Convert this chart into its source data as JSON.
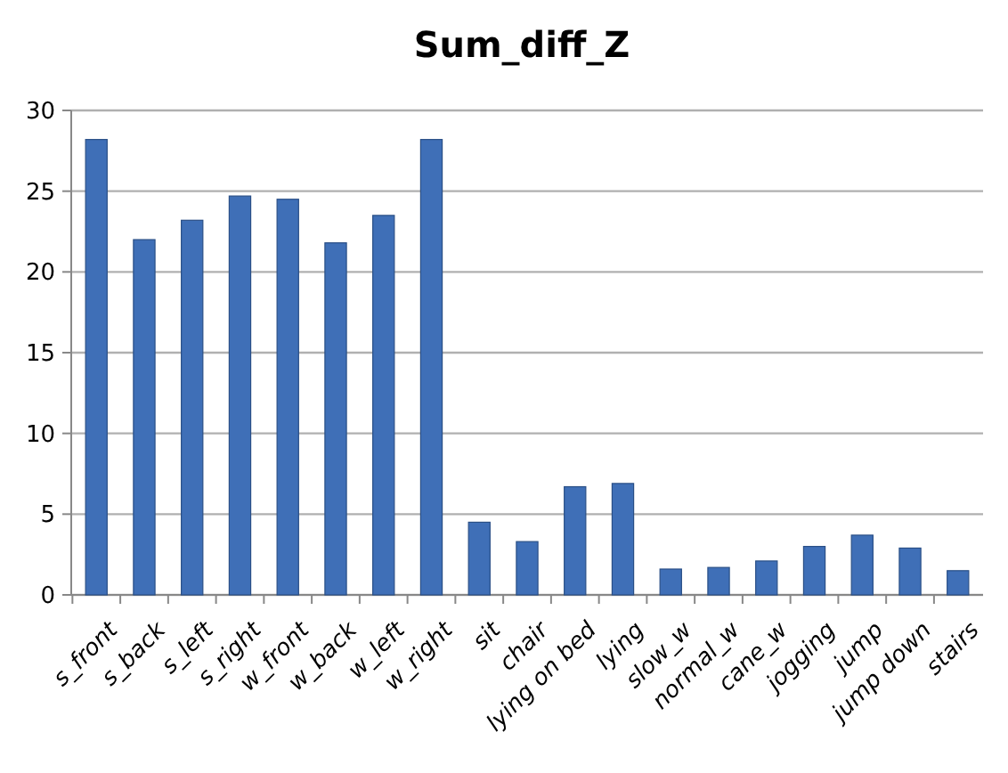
{
  "chart_data": {
    "type": "bar",
    "title": "Sum_diff_Z",
    "categories": [
      "s_front",
      "s_back",
      "s_left",
      "s_right",
      "w_front",
      "w_back",
      "w_left",
      "w_right",
      "sit",
      "chair",
      "lying on bed",
      "lying",
      "slow_w",
      "normal_w",
      "cane_w",
      "jogging",
      "jump",
      "jump down",
      "stairs"
    ],
    "values": [
      28.2,
      22,
      23.2,
      24.7,
      24.5,
      21.8,
      23.5,
      28.2,
      4.5,
      3.3,
      6.7,
      6.9,
      1.6,
      1.7,
      2.1,
      3,
      3.7,
      2.9,
      1.5
    ],
    "color": "#3f6fb7",
    "ylim": [
      0,
      30
    ],
    "yticks": [
      0,
      5,
      10,
      15,
      20,
      25,
      30
    ],
    "grid": "y"
  }
}
